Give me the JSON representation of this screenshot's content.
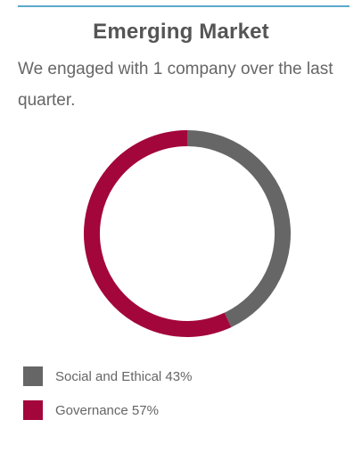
{
  "header": {
    "title": "Emerging Market",
    "description": "We engaged with 1 company over the last quarter."
  },
  "chart_data": {
    "type": "pie",
    "style": "donut",
    "categories": [
      "Social and Ethical",
      "Governance"
    ],
    "values": [
      43,
      57
    ],
    "colors": [
      "#666666",
      "#a3063a"
    ],
    "title": "",
    "xlabel": "",
    "ylabel": ""
  },
  "legend": {
    "items": [
      {
        "label": "Social and Ethical 43%",
        "color": "#666666"
      },
      {
        "label": "Governance 57%",
        "color": "#a3063a"
      }
    ]
  },
  "colors": {
    "accent_rule": "#5aa9cc",
    "text": "#555555"
  }
}
